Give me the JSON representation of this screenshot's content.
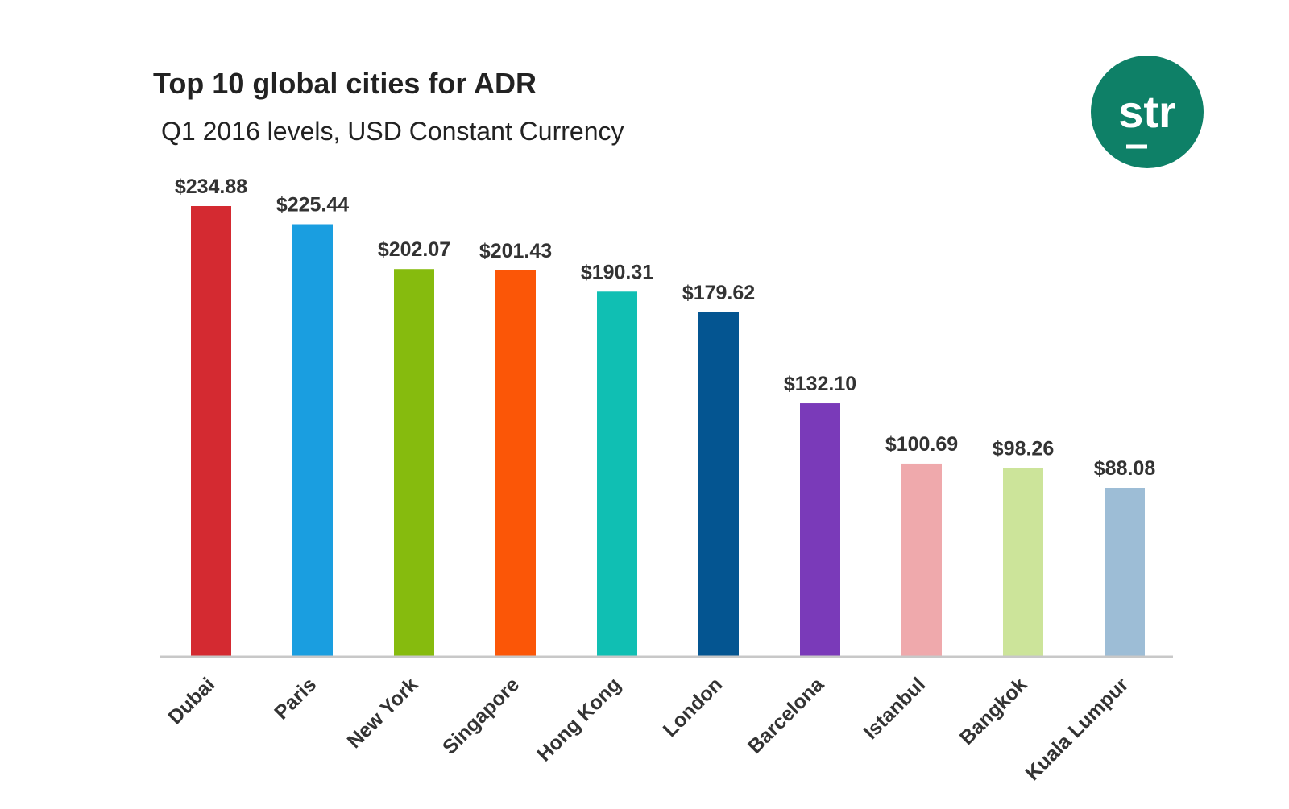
{
  "logo": {
    "text": "str",
    "color": "#0e8067"
  },
  "chart_data": {
    "type": "bar",
    "title": "Top 10 global cities for ADR",
    "subtitle": "Q1 2016 levels, USD Constant Currency",
    "xlabel": "",
    "ylabel": "",
    "ylim": [
      0,
      240
    ],
    "grid": false,
    "legend": "none",
    "categories": [
      "Dubai",
      "Paris",
      "New York",
      "Singapore",
      "Hong Kong",
      "London",
      "Barcelona",
      "Istanbul",
      "Bangkok",
      "Kuala Lumpur"
    ],
    "values": [
      234.88,
      225.44,
      202.07,
      201.43,
      190.31,
      179.62,
      132.1,
      100.69,
      98.26,
      88.08
    ],
    "data_labels": [
      "$234.88",
      "$225.44",
      "$202.07",
      "$201.43",
      "$190.31",
      "$179.62",
      "$132.10",
      "$100.69",
      "$98.26",
      "$88.08"
    ],
    "colors": [
      "#d42a31",
      "#1a9ee0",
      "#86bb0e",
      "#fb5607",
      "#10bfb3",
      "#045591",
      "#7a3ab9",
      "#efa9ac",
      "#cce49a",
      "#9dbdd6"
    ]
  }
}
